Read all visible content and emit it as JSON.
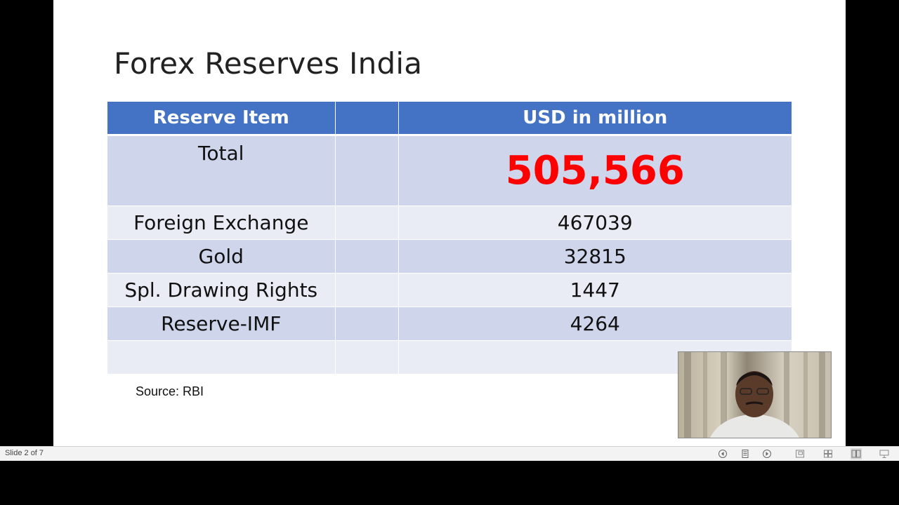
{
  "slide": {
    "title": "Forex Reserves India",
    "table": {
      "headers": [
        "Reserve Item",
        "",
        "USD in million"
      ],
      "total": {
        "item": "Total",
        "value": "505,566"
      },
      "rows": [
        {
          "item": "Foreign Exchange",
          "value": "467039"
        },
        {
          "item": "Gold",
          "value": "32815"
        },
        {
          "item": "Spl. Drawing Rights",
          "value": "1447"
        },
        {
          "item": "Reserve-IMF",
          "value": "4264"
        }
      ]
    },
    "source": "Source: RBI"
  },
  "status_bar": {
    "slide_counter": "Slide 2 of 7",
    "icons": [
      "previous-slide-icon",
      "slide-menu-icon",
      "next-slide-icon",
      "normal-view-icon",
      "slide-sorter-icon",
      "reading-view-icon",
      "slide-show-icon"
    ]
  },
  "colors": {
    "header_blue": "#4472c4",
    "row_dark": "#cfd5ea",
    "row_light": "#e9ebf5",
    "total_red": "#ff0000"
  }
}
